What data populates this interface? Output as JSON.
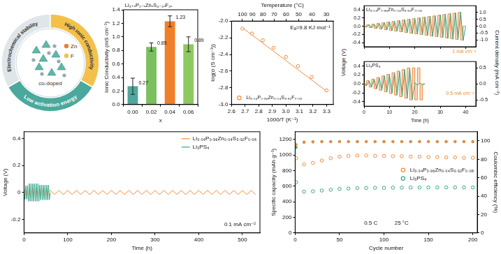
{
  "diagram": {
    "segments": [
      "Electrochemical stability",
      "High ionic conductivity",
      "Low activation energy"
    ],
    "elements": [
      "Zn",
      "F"
    ],
    "center_label": "co-doped"
  },
  "chart_data": [
    {
      "type": "bar",
      "annotation": "Li₃₊ₓP₁₋ₓZnₓS₄₋₂ₓF₂ₓ",
      "xlabel": "x",
      "ylabel": "Ionic Conductivity (mS cm⁻¹)",
      "categories": [
        "0.00",
        "0.02",
        "0.04",
        "0.06"
      ],
      "values": [
        0.27,
        0.85,
        1.23,
        0.89
      ],
      "errors": [
        0.12,
        0.06,
        0.08,
        0.11
      ],
      "colors": [
        "#4fa89b",
        "#7bbf5e",
        "#f07f2a",
        "#8cc95e"
      ],
      "ylim": [
        0,
        1.4
      ],
      "yticks": [
        {
          "value": 0,
          "label": "0.0"
        },
        0.2,
        0.4,
        0.6,
        0.8,
        {
          "value": 1,
          "label": "1.0"
        },
        1.2,
        1.4
      ],
      "data_labels": true,
      "grid": false
    },
    {
      "type": "scatter",
      "annotation": "Eₐ=9.8 KJ mol⁻¹",
      "xlabel": "1000/T (K⁻¹)",
      "x2label": "Temperature (°C)",
      "ylabel": "log(σ (S cm⁻¹))",
      "series": [
        {
          "name": "Li₃.₀₄P₀.₉₆Zn₀.₀₄S₃.₉₂F₀.₀₈",
          "color": "#f08a3c",
          "marker": "open_circle",
          "x": [
            2.68,
            2.75,
            2.83,
            2.91,
            3.0,
            3.09,
            3.19,
            3.3
          ],
          "values": [
            -2.09,
            -2.15,
            -2.23,
            -2.32,
            -2.43,
            -2.54,
            -2.67,
            -2.83
          ]
        },
        {
          "type": "line",
          "color": "#f08a3c",
          "x": [
            2.68,
            3.3
          ],
          "values": [
            -2.08,
            -2.84
          ]
        }
      ],
      "xlim": [
        2.6,
        3.35
      ],
      "xticks": [
        2.6,
        2.7,
        2.8,
        2.9,
        {
          "value": 3,
          "label": "3.0"
        },
        3.1,
        3.2,
        3.3
      ],
      "x2lim": [
        2.6,
        3.35
      ],
      "x2ticks": [
        {
          "value": 2.68,
          "label": "100"
        },
        {
          "value": 2.754,
          "label": "90"
        },
        {
          "value": 2.832,
          "label": "80"
        },
        {
          "value": 2.914,
          "label": "70"
        },
        {
          "value": 3.002,
          "label": "60"
        },
        {
          "value": 3.095,
          "label": "50"
        },
        {
          "value": 3.193,
          "label": "40"
        },
        {
          "value": 3.299,
          "label": "30"
        }
      ],
      "ylim": [
        -3,
        -2
      ],
      "yticks": [
        {
          "value": -3,
          "label": "-3.0"
        },
        -2.8,
        -2.6,
        -2.4,
        -2.2,
        {
          "value": -2,
          "label": "-2.0"
        }
      ],
      "legend": "lower left",
      "grid": false
    },
    {
      "type": "line",
      "xlabel": "Time (h)",
      "ylabel": "Voltage (V)",
      "y2label": "Current density (mA cm⁻²)",
      "panels": [
        {
          "title": "Li₃.₀₄P₀.₉₆Zn₀.₀₄S₃.₉₂F₀.₀₈",
          "annotation": "1 mA cm⁻²",
          "tick_labels": "y",
          "grid": false,
          "x": [
            0,
            1,
            2,
            3,
            4,
            5,
            6,
            7,
            8,
            9,
            10,
            11,
            12,
            13,
            14,
            15,
            16,
            17,
            18,
            19,
            20,
            21,
            22,
            23,
            24,
            25,
            26,
            27,
            28,
            29,
            30,
            31,
            32,
            33,
            34,
            35,
            36,
            37,
            38,
            39,
            40
          ],
          "series": [
            {
              "color": "#3aa58a",
              "values": [
                0.02,
                -0.02,
                0.04,
                -0.04,
                0.05,
                -0.05,
                0.07,
                -0.07,
                0.09,
                -0.09,
                0.11,
                -0.11,
                0.12,
                -0.12,
                0.14,
                -0.14,
                0.16,
                -0.16,
                0.18,
                -0.18,
                0.19,
                -0.19,
                0.21,
                -0.21,
                0.23,
                -0.23,
                0.25,
                -0.25,
                0.26,
                -0.26,
                0.28,
                -0.28,
                0.3,
                -0.3,
                0.32,
                -0.32,
                0.33,
                -0.33,
                0.35,
                -0.35,
                0
              ]
            },
            {
              "color": "#f08a3c",
              "axis": "y2",
              "line_style": "stepped",
              "values": [
                0.05,
                -0.05,
                0.1,
                -0.1,
                0.15,
                -0.15,
                0.2,
                -0.2,
                0.25,
                -0.25,
                0.3,
                -0.3,
                0.35,
                -0.35,
                0.4,
                -0.4,
                0.45,
                -0.45,
                0.5,
                -0.5,
                0.55,
                -0.55,
                0.6,
                -0.6,
                0.65,
                -0.65,
                0.7,
                -0.7,
                0.75,
                -0.75,
                0.8,
                -0.8,
                0.85,
                -0.85,
                0.9,
                -0.9,
                0.95,
                -0.95,
                1,
                -1,
                0
              ]
            }
          ],
          "xlim": [
            0,
            44
          ],
          "xticks": [
            0,
            10,
            20,
            30,
            40
          ],
          "ylim": [
            -0.5,
            0.5
          ],
          "yticks": [
            -0.4,
            -0.2,
            {
              "value": 0,
              "label": "0.0"
            },
            0.2,
            0.4
          ],
          "y2lim": [
            -1.5,
            1.5
          ],
          "y2ticks": [
            {
              "value": -1,
              "label": "-1.0"
            },
            -0.5,
            {
              "value": 0,
              "label": "0.0"
            },
            0.5,
            {
              "value": 1,
              "label": "1.0"
            }
          ]
        },
        {
          "title": "Li₃PS₄",
          "annotation": "0.5 mA cm⁻²",
          "grid": false,
          "x": [
            0,
            1,
            2,
            3,
            4,
            5,
            6,
            7,
            8,
            9,
            10,
            11,
            12,
            13,
            14,
            15,
            16,
            17,
            18,
            19,
            20,
            21,
            22,
            23,
            24
          ],
          "series": [
            {
              "color": "#3aa58a",
              "values": [
                0.04,
                -0.04,
                0.07,
                -0.07,
                0.11,
                -0.11,
                0.14,
                -0.14,
                0.18,
                -0.18,
                0.21,
                -0.21,
                0.25,
                -0.25,
                0.28,
                -0.28,
                0.32,
                -0.32,
                0.35,
                -0.35,
                0.03,
                -0.03,
                0.02,
                -0.02,
                0
              ]
            },
            {
              "color": "#f08a3c",
              "axis": "y2",
              "line_style": "stepped",
              "values": [
                0.05,
                -0.05,
                0.1,
                -0.1,
                0.15,
                -0.15,
                0.2,
                -0.2,
                0.25,
                -0.25,
                0.3,
                -0.3,
                0.35,
                -0.35,
                0.4,
                -0.4,
                0.45,
                -0.45,
                0.5,
                -0.5,
                0.5,
                -0.5,
                0.5,
                -0.5,
                0
              ]
            }
          ],
          "xlim": [
            0,
            44
          ],
          "xticks": [
            0,
            10,
            20,
            30,
            40
          ],
          "ylim": [
            -0.5,
            0.5
          ],
          "yticks": [
            -0.4,
            -0.2,
            {
              "value": 0,
              "label": "0.0"
            },
            0.2,
            0.4
          ],
          "y2lim": [
            -0.7,
            0.7
          ],
          "y2ticks": [
            -0.5,
            {
              "value": 0,
              "label": "0.0"
            },
            0.5
          ]
        }
      ]
    },
    {
      "type": "line",
      "xlabel": "Time (h)",
      "ylabel": "Voltage (V)",
      "annotation": "0.1 mA cm⁻²",
      "series": [
        {
          "name": "Li₃.₀₄P₀.₉₆Zn₀.₀₄S₃.₉₂F₀.₀₈",
          "color": "#f08a3c",
          "x": [
            0,
            10,
            20,
            30,
            40,
            50,
            60,
            70,
            80,
            90,
            100,
            110,
            120,
            130,
            140,
            150,
            160,
            170,
            180,
            190,
            200,
            210,
            220,
            230,
            240,
            250,
            260,
            270,
            280,
            290,
            300,
            310,
            320,
            330,
            340,
            350,
            360,
            370,
            380,
            390,
            400,
            410,
            420,
            430,
            440,
            450,
            460,
            470,
            480,
            490,
            500,
            510,
            520,
            530
          ],
          "values": [
            0.015,
            -0.015,
            0.015,
            -0.015,
            0.015,
            -0.015,
            0.015,
            -0.015,
            0.015,
            -0.015,
            0.015,
            -0.015,
            0.015,
            -0.015,
            0.015,
            -0.015,
            0.015,
            -0.015,
            0.015,
            -0.015,
            0.015,
            -0.015,
            0.015,
            -0.015,
            0.015,
            -0.015,
            0.015,
            -0.015,
            0.015,
            -0.015,
            0.015,
            -0.015,
            0.015,
            -0.015,
            0.015,
            -0.015,
            0.015,
            -0.015,
            0.015,
            -0.015,
            0.015,
            -0.015,
            0.015,
            -0.015,
            0.015,
            -0.015,
            0.015,
            -0.015,
            0.015,
            -0.015,
            0.015,
            -0.015,
            0.015,
            -0.015
          ]
        },
        {
          "name": "Li₃PS₄",
          "color": "#3aa58a",
          "x": [
            0,
            2,
            4,
            6,
            8,
            10,
            12,
            14,
            16,
            18,
            20,
            22,
            24,
            26,
            28,
            30,
            32,
            34,
            36,
            38,
            40,
            42,
            44,
            46,
            48,
            50,
            52,
            54,
            56,
            58,
            60
          ],
          "values": [
            0.05,
            -0.05,
            0.05,
            -0.05,
            0.05,
            -0.065,
            0.065,
            -0.065,
            0.065,
            -0.065,
            0.065,
            -0.065,
            0.065,
            -0.065,
            0.065,
            -0.065,
            0.065,
            -0.065,
            0.055,
            -0.055,
            0.055,
            -0.055,
            0.055,
            -0.055,
            0.055,
            -0.055,
            0.055,
            -0.055,
            0.055,
            -0.055,
            0
          ]
        }
      ],
      "xlim": [
        0,
        540
      ],
      "xticks": [
        0,
        100,
        200,
        300,
        400,
        500
      ],
      "ylim": [
        -0.3,
        0.45
      ],
      "yticks": [
        -0.2,
        0,
        0.2,
        0.4
      ],
      "legend": "upper right",
      "grid": false
    },
    {
      "type": "scatter",
      "xlabel": "Cycle number",
      "ylabel": "Specific capacity (mAh g⁻¹)",
      "y2label": "Coulombic efficiency (%)",
      "annotations": [
        "0.5 C",
        "25 °C"
      ],
      "x": [
        1,
        10,
        20,
        30,
        40,
        50,
        60,
        70,
        80,
        90,
        100,
        110,
        120,
        130,
        140,
        150,
        160,
        170,
        180,
        190,
        200
      ],
      "series": [
        {
          "name": "Li₃.₀₄P₀.₉₆Zn₀.₀₄S₃.₉₂F₀.₀₈",
          "color": "#f08a3c",
          "marker": "open_circle",
          "values": [
            960,
            880,
            900,
            930,
            960,
            980,
            990,
            995,
            995,
            990,
            990,
            985,
            985,
            980,
            980,
            975,
            975,
            970,
            970,
            965,
            965
          ]
        },
        {
          "name": "Li₃PS₄",
          "color": "#3aa58a",
          "marker": "open_circle",
          "values": [
            650,
            530,
            535,
            545,
            555,
            565,
            570,
            575,
            578,
            580,
            580,
            582,
            582,
            583,
            583,
            584,
            584,
            585,
            585,
            585,
            585
          ]
        },
        {
          "color": "#f08a3c",
          "marker": "circle",
          "axis": "y2",
          "values": [
            96,
            98.8,
            99.1,
            99.3,
            99.3,
            99.3,
            99.3,
            99.3,
            99.3,
            99.3,
            99.3,
            99.3,
            99.3,
            99.3,
            99.3,
            99.3,
            99.3,
            99.3,
            99.3,
            99.3,
            99.3
          ]
        },
        {
          "color": "#3aa58a",
          "marker": "circle",
          "axis": "y2",
          "values": [
            93,
            98.5,
            99,
            99.2,
            99.2,
            99.2,
            99.2,
            99.2,
            99.2,
            99.2,
            99.2,
            99.2,
            99.2,
            99.2,
            99.2,
            99.2,
            99.2,
            99.2,
            99.2,
            99.2,
            99.2
          ]
        }
      ],
      "xlim": [
        0,
        205
      ],
      "xticks": [
        0,
        50,
        100,
        150,
        200
      ],
      "ylim": [
        0,
        1300
      ],
      "yticks": [
        0,
        200,
        400,
        600,
        800,
        1000,
        1200
      ],
      "y2lim": [
        0,
        110
      ],
      "y2ticks": [
        0,
        20,
        40,
        60,
        80,
        100
      ],
      "legend": "center right",
      "grid": false
    }
  ]
}
